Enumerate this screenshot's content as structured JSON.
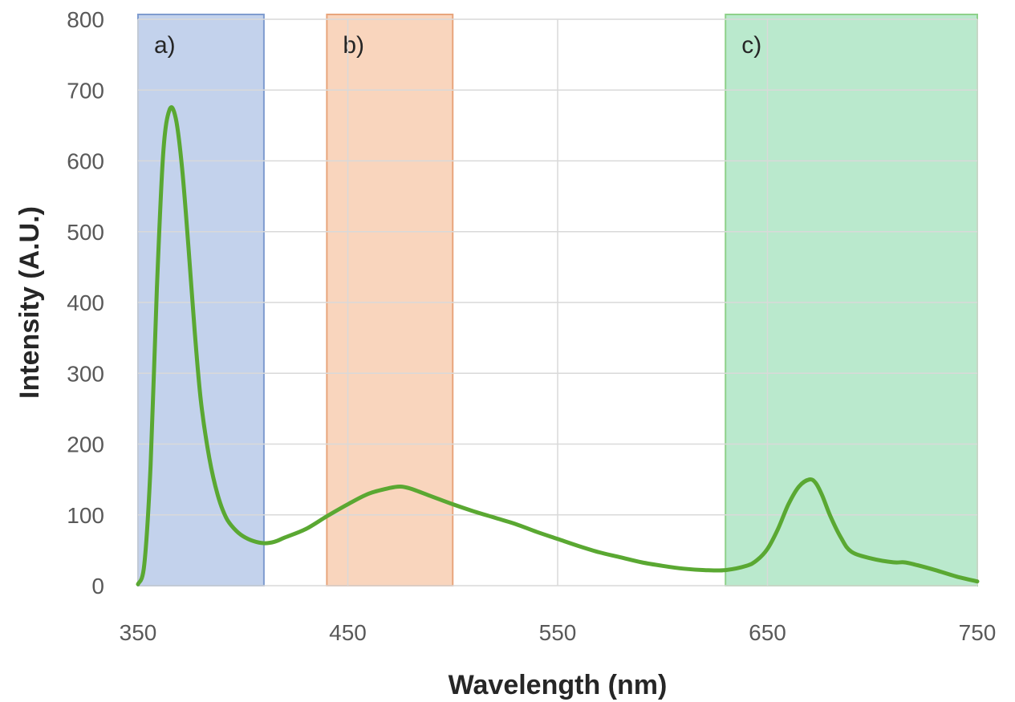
{
  "chart_data": {
    "type": "line",
    "xlabel": "Wavelength (nm)",
    "ylabel": "Intensity (A.U.)",
    "xlim": [
      350,
      750
    ],
    "ylim": [
      0,
      800
    ],
    "x_ticks": [
      350,
      450,
      550,
      650,
      750
    ],
    "y_ticks": [
      0,
      100,
      200,
      300,
      400,
      500,
      600,
      700,
      800
    ],
    "grid": true,
    "bands": [
      {
        "label": "a)",
        "start": 350,
        "end": 410,
        "color": "#b4c7e7",
        "border": "#7f9ccf"
      },
      {
        "label": "b)",
        "start": 440,
        "end": 500,
        "color": "#f8cbad",
        "border": "#e8a57c"
      },
      {
        "label": "c)",
        "start": 630,
        "end": 750,
        "color": "#a9e4c0",
        "border": "#8fd18a"
      }
    ],
    "series": [
      {
        "color": "#5aa832",
        "x": [
          350,
          353,
          356,
          359,
          362,
          365,
          368,
          371,
          374,
          377,
          380,
          384,
          388,
          392,
          396,
          400,
          405,
          410,
          415,
          420,
          430,
          440,
          450,
          460,
          470,
          475,
          480,
          490,
          500,
          510,
          520,
          530,
          540,
          550,
          560,
          570,
          580,
          590,
          600,
          610,
          620,
          630,
          640,
          645,
          650,
          655,
          660,
          665,
          670,
          673,
          676,
          680,
          685,
          690,
          700,
          710,
          715,
          720,
          730,
          740,
          750
        ],
        "y": [
          2,
          30,
          170,
          420,
          610,
          672,
          660,
          590,
          480,
          360,
          260,
          180,
          128,
          96,
          80,
          70,
          63,
          60,
          62,
          68,
          80,
          98,
          115,
          130,
          138,
          140,
          137,
          126,
          115,
          105,
          96,
          87,
          76,
          66,
          56,
          47,
          40,
          33,
          28,
          24,
          22,
          22,
          28,
          36,
          52,
          80,
          115,
          140,
          150,
          145,
          128,
          98,
          68,
          48,
          38,
          33,
          33,
          30,
          22,
          13,
          6
        ]
      }
    ]
  }
}
